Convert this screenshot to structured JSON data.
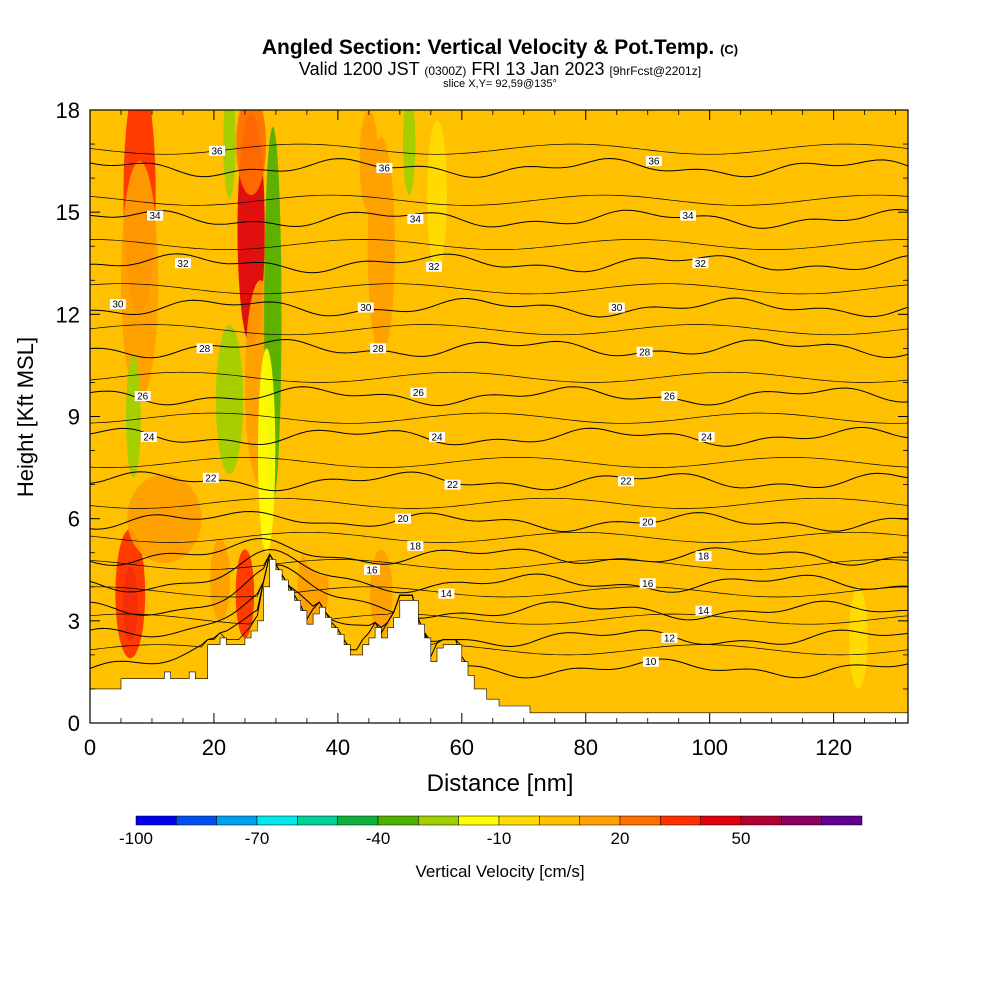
{
  "header": {
    "title_main": "Angled Section: Vertical Velocity & Pot.Temp.",
    "title_unit": "(C)",
    "valid_prefix": "Valid 1200 JST",
    "valid_utc": "(0300Z)",
    "valid_date": "FRI 13 Jan 2023",
    "forecast": "[9hrFcst@2201z]",
    "slice": "slice X,Y= 92,59@135°"
  },
  "chart_data": {
    "type": "heatmap",
    "xlabel": "Distance [nm]",
    "ylabel": "Height [Kft MSL]",
    "xlim": [
      0,
      132
    ],
    "ylim": [
      0,
      18
    ],
    "x_ticks": [
      "0",
      "20",
      "40",
      "60",
      "80",
      "100",
      "120"
    ],
    "x_tick_values": [
      0,
      20,
      40,
      60,
      80,
      100,
      120
    ],
    "y_ticks": [
      "0",
      "3",
      "6",
      "9",
      "12",
      "15",
      "18"
    ],
    "y_tick_values": [
      0,
      3,
      6,
      9,
      12,
      15,
      18
    ],
    "terrain": [
      [
        0,
        1.0
      ],
      [
        5,
        1.0
      ],
      [
        5,
        1.3
      ],
      [
        12,
        1.3
      ],
      [
        12,
        1.5
      ],
      [
        13,
        1.5
      ],
      [
        13,
        1.3
      ],
      [
        16,
        1.3
      ],
      [
        16,
        1.5
      ],
      [
        17,
        1.5
      ],
      [
        17,
        1.3
      ],
      [
        19,
        1.3
      ],
      [
        19,
        2.3
      ],
      [
        21,
        2.3
      ],
      [
        21,
        2.5
      ],
      [
        22,
        2.5
      ],
      [
        22,
        2.3
      ],
      [
        25,
        2.3
      ],
      [
        25,
        2.5
      ],
      [
        26,
        2.5
      ],
      [
        26,
        2.7
      ],
      [
        27,
        2.7
      ],
      [
        27,
        3.0
      ],
      [
        28,
        3.0
      ],
      [
        28,
        4.0
      ],
      [
        29,
        4.0
      ],
      [
        29,
        4.8
      ],
      [
        30,
        4.8
      ],
      [
        30,
        4.5
      ],
      [
        31,
        4.5
      ],
      [
        31,
        4.2
      ],
      [
        32,
        4.2
      ],
      [
        32,
        3.9
      ],
      [
        33,
        3.9
      ],
      [
        33,
        3.6
      ],
      [
        34,
        3.6
      ],
      [
        34,
        3.3
      ],
      [
        35,
        3.3
      ],
      [
        35,
        2.9
      ],
      [
        36,
        2.9
      ],
      [
        36,
        3.2
      ],
      [
        37,
        3.2
      ],
      [
        37,
        3.4
      ],
      [
        38,
        3.4
      ],
      [
        38,
        3.1
      ],
      [
        39,
        3.1
      ],
      [
        39,
        2.8
      ],
      [
        40,
        2.8
      ],
      [
        40,
        2.6
      ],
      [
        41,
        2.6
      ],
      [
        41,
        2.3
      ],
      [
        42,
        2.3
      ],
      [
        42,
        2.0
      ],
      [
        44,
        2.0
      ],
      [
        44,
        2.3
      ],
      [
        45,
        2.3
      ],
      [
        45,
        2.5
      ],
      [
        46,
        2.5
      ],
      [
        46,
        2.8
      ],
      [
        47,
        2.8
      ],
      [
        47,
        2.5
      ],
      [
        48,
        2.5
      ],
      [
        48,
        2.8
      ],
      [
        49,
        2.8
      ],
      [
        49,
        3.1
      ],
      [
        50,
        3.1
      ],
      [
        50,
        3.6
      ],
      [
        53,
        3.6
      ],
      [
        53,
        2.9
      ],
      [
        54,
        2.9
      ],
      [
        54,
        2.5
      ],
      [
        55,
        2.5
      ],
      [
        55,
        1.8
      ],
      [
        56,
        1.8
      ],
      [
        56,
        2.2
      ],
      [
        57,
        2.2
      ],
      [
        57,
        2.3
      ],
      [
        60,
        2.3
      ],
      [
        60,
        1.8
      ],
      [
        61,
        1.8
      ],
      [
        61,
        1.4
      ],
      [
        62,
        1.4
      ],
      [
        62,
        1.0
      ],
      [
        64,
        1.0
      ],
      [
        64,
        0.7
      ],
      [
        66,
        0.7
      ],
      [
        66,
        0.5
      ],
      [
        71,
        0.5
      ],
      [
        71,
        0.3
      ],
      [
        132,
        0.3
      ]
    ],
    "theta_levels": [
      {
        "label": "10",
        "y": 1.6
      },
      {
        "label": "12",
        "y": 2.5
      },
      {
        "label": "14",
        "y": 3.3
      },
      {
        "label": "16",
        "y": 4.1
      },
      {
        "label": "18",
        "y": 4.9
      },
      {
        "label": "20",
        "y": 5.9
      },
      {
        "label": "22",
        "y": 7.1
      },
      {
        "label": "24",
        "y": 8.4
      },
      {
        "label": "26",
        "y": 9.6
      },
      {
        "label": "28",
        "y": 11.0
      },
      {
        "label": "30",
        "y": 12.2
      },
      {
        "label": "32",
        "y": 13.5
      },
      {
        "label": "34",
        "y": 14.8
      },
      {
        "label": "36",
        "y": 16.3
      }
    ],
    "theta_label_positions": [
      {
        "label": "36",
        "x": 20.5,
        "y": 16.8
      },
      {
        "label": "34",
        "x": 10.5,
        "y": 14.9
      },
      {
        "label": "32",
        "x": 15,
        "y": 13.5
      },
      {
        "label": "30",
        "x": 4.5,
        "y": 12.3
      },
      {
        "label": "28",
        "x": 18.5,
        "y": 11.0
      },
      {
        "label": "26",
        "x": 8.5,
        "y": 9.6
      },
      {
        "label": "24",
        "x": 9.5,
        "y": 8.4
      },
      {
        "label": "22",
        "x": 19.5,
        "y": 7.2
      },
      {
        "label": "36",
        "x": 47.5,
        "y": 16.3
      },
      {
        "label": "34",
        "x": 52.5,
        "y": 14.8
      },
      {
        "label": "32",
        "x": 55.5,
        "y": 13.4
      },
      {
        "label": "30",
        "x": 44.5,
        "y": 12.2
      },
      {
        "label": "28",
        "x": 46.5,
        "y": 11.0
      },
      {
        "label": "26",
        "x": 53,
        "y": 9.7
      },
      {
        "label": "24",
        "x": 56,
        "y": 8.4
      },
      {
        "label": "22",
        "x": 58.5,
        "y": 7.0
      },
      {
        "label": "20",
        "x": 50.5,
        "y": 6.0
      },
      {
        "label": "18",
        "x": 52.5,
        "y": 5.2
      },
      {
        "label": "16",
        "x": 45.5,
        "y": 4.5
      },
      {
        "label": "14",
        "x": 57.5,
        "y": 3.8
      },
      {
        "label": "36",
        "x": 91,
        "y": 16.5
      },
      {
        "label": "34",
        "x": 96.5,
        "y": 14.9
      },
      {
        "label": "32",
        "x": 98.5,
        "y": 13.5
      },
      {
        "label": "30",
        "x": 85,
        "y": 12.2
      },
      {
        "label": "28",
        "x": 89.5,
        "y": 10.9
      },
      {
        "label": "26",
        "x": 93.5,
        "y": 9.6
      },
      {
        "label": "24",
        "x": 99.5,
        "y": 8.4
      },
      {
        "label": "22",
        "x": 86.5,
        "y": 7.1
      },
      {
        "label": "20",
        "x": 90,
        "y": 5.9
      },
      {
        "label": "18",
        "x": 99,
        "y": 4.9
      },
      {
        "label": "16",
        "x": 90,
        "y": 4.1
      },
      {
        "label": "14",
        "x": 99,
        "y": 3.3
      },
      {
        "label": "12",
        "x": 93.5,
        "y": 2.5
      },
      {
        "label": "10",
        "x": 90.5,
        "y": 1.8
      }
    ],
    "velocity_features": [
      {
        "x": 8,
        "y": 15.5,
        "w": 2.6,
        "h": 3.5,
        "v": 35
      },
      {
        "x": 8,
        "y": 13,
        "w": 3,
        "h": 3.5,
        "v": 18
      },
      {
        "x": 26,
        "y": 14.5,
        "w": 2.2,
        "h": 3.4,
        "v": 40
      },
      {
        "x": 26,
        "y": 17,
        "w": 2.4,
        "h": 1.5,
        "v": 25
      },
      {
        "x": 27.5,
        "y": 10,
        "w": 2.5,
        "h": 3,
        "v": 12
      },
      {
        "x": 29.5,
        "y": 12,
        "w": 1.4,
        "h": 5.5,
        "v": -38
      },
      {
        "x": 28.5,
        "y": 8,
        "w": 1.4,
        "h": 3,
        "v": -20
      },
      {
        "x": 22.5,
        "y": 17,
        "w": 1.0,
        "h": 1.6,
        "v": -30
      },
      {
        "x": 22.5,
        "y": 9.5,
        "w": 2.2,
        "h": 2.2,
        "v": -22
      },
      {
        "x": 7,
        "y": 9,
        "w": 1.2,
        "h": 1.8,
        "v": -25
      },
      {
        "x": 6.5,
        "y": 3.5,
        "w": 1.2,
        "h": 1.1,
        "v": 60
      },
      {
        "x": 6.5,
        "y": 3.8,
        "w": 2.4,
        "h": 1.9,
        "v": 35
      },
      {
        "x": 25,
        "y": 3.8,
        "w": 1.5,
        "h": 1.3,
        "v": 30
      },
      {
        "x": 21,
        "y": 4.2,
        "w": 1.6,
        "h": 1.2,
        "v": 18
      },
      {
        "x": 47,
        "y": 14,
        "w": 2.2,
        "h": 3.2,
        "v": 18
      },
      {
        "x": 45,
        "y": 16.5,
        "w": 1.5,
        "h": 1.5,
        "v": 15
      },
      {
        "x": 51.5,
        "y": 17,
        "w": 1.0,
        "h": 1.5,
        "v": -30
      },
      {
        "x": 56,
        "y": 15.5,
        "w": 1.6,
        "h": 2.2,
        "v": -10
      },
      {
        "x": 36,
        "y": 4,
        "w": 2.5,
        "h": 1.3,
        "v": 15
      },
      {
        "x": 47,
        "y": 3.8,
        "w": 1.8,
        "h": 1.3,
        "v": 15
      },
      {
        "x": 12,
        "y": 6,
        "w": 6,
        "h": 1.3,
        "v": 12
      },
      {
        "x": 38,
        "y": 5.5,
        "w": 4,
        "h": 1.2,
        "v": 8
      },
      {
        "x": 82,
        "y": 11,
        "w": 5,
        "h": 5,
        "v": 6
      },
      {
        "x": 72,
        "y": 7,
        "w": 3,
        "h": 3,
        "v": 6
      },
      {
        "x": 105,
        "y": 6,
        "w": 4,
        "h": 3,
        "v": 6
      },
      {
        "x": 118,
        "y": 9,
        "w": 3.5,
        "h": 4,
        "v": 6
      },
      {
        "x": 92,
        "y": 3,
        "w": 2,
        "h": 2,
        "v": 8
      },
      {
        "x": 112,
        "y": 2.5,
        "w": 2,
        "h": 1.5,
        "v": 6
      },
      {
        "x": 65,
        "y": 10,
        "w": 2.5,
        "h": 6,
        "v": 4
      },
      {
        "x": 124,
        "y": 2.5,
        "w": 1.5,
        "h": 1.5,
        "v": -6
      }
    ],
    "velocity_background": 0,
    "colorbar": {
      "title": "Vertical Velocity [cm/s]",
      "levels": [
        -100,
        -90,
        -80,
        -70,
        -60,
        -50,
        -40,
        -30,
        -20,
        -10,
        0,
        10,
        20,
        30,
        40,
        50,
        60,
        70
      ],
      "colors": [
        "#0000f0",
        "#0050f0",
        "#00a0f0",
        "#00e8e8",
        "#00d098",
        "#10b040",
        "#50b000",
        "#a0d000",
        "#ffff00",
        "#ffdd00",
        "#ffc000",
        "#ffa000",
        "#ff7000",
        "#ff3000",
        "#e00010",
        "#b00030",
        "#880060",
        "#600090"
      ],
      "tick_labels": [
        "-100",
        "-70",
        "-40",
        "-10",
        "20",
        "50"
      ],
      "tick_values": [
        -100,
        -70,
        -40,
        -10,
        20,
        50
      ]
    }
  }
}
